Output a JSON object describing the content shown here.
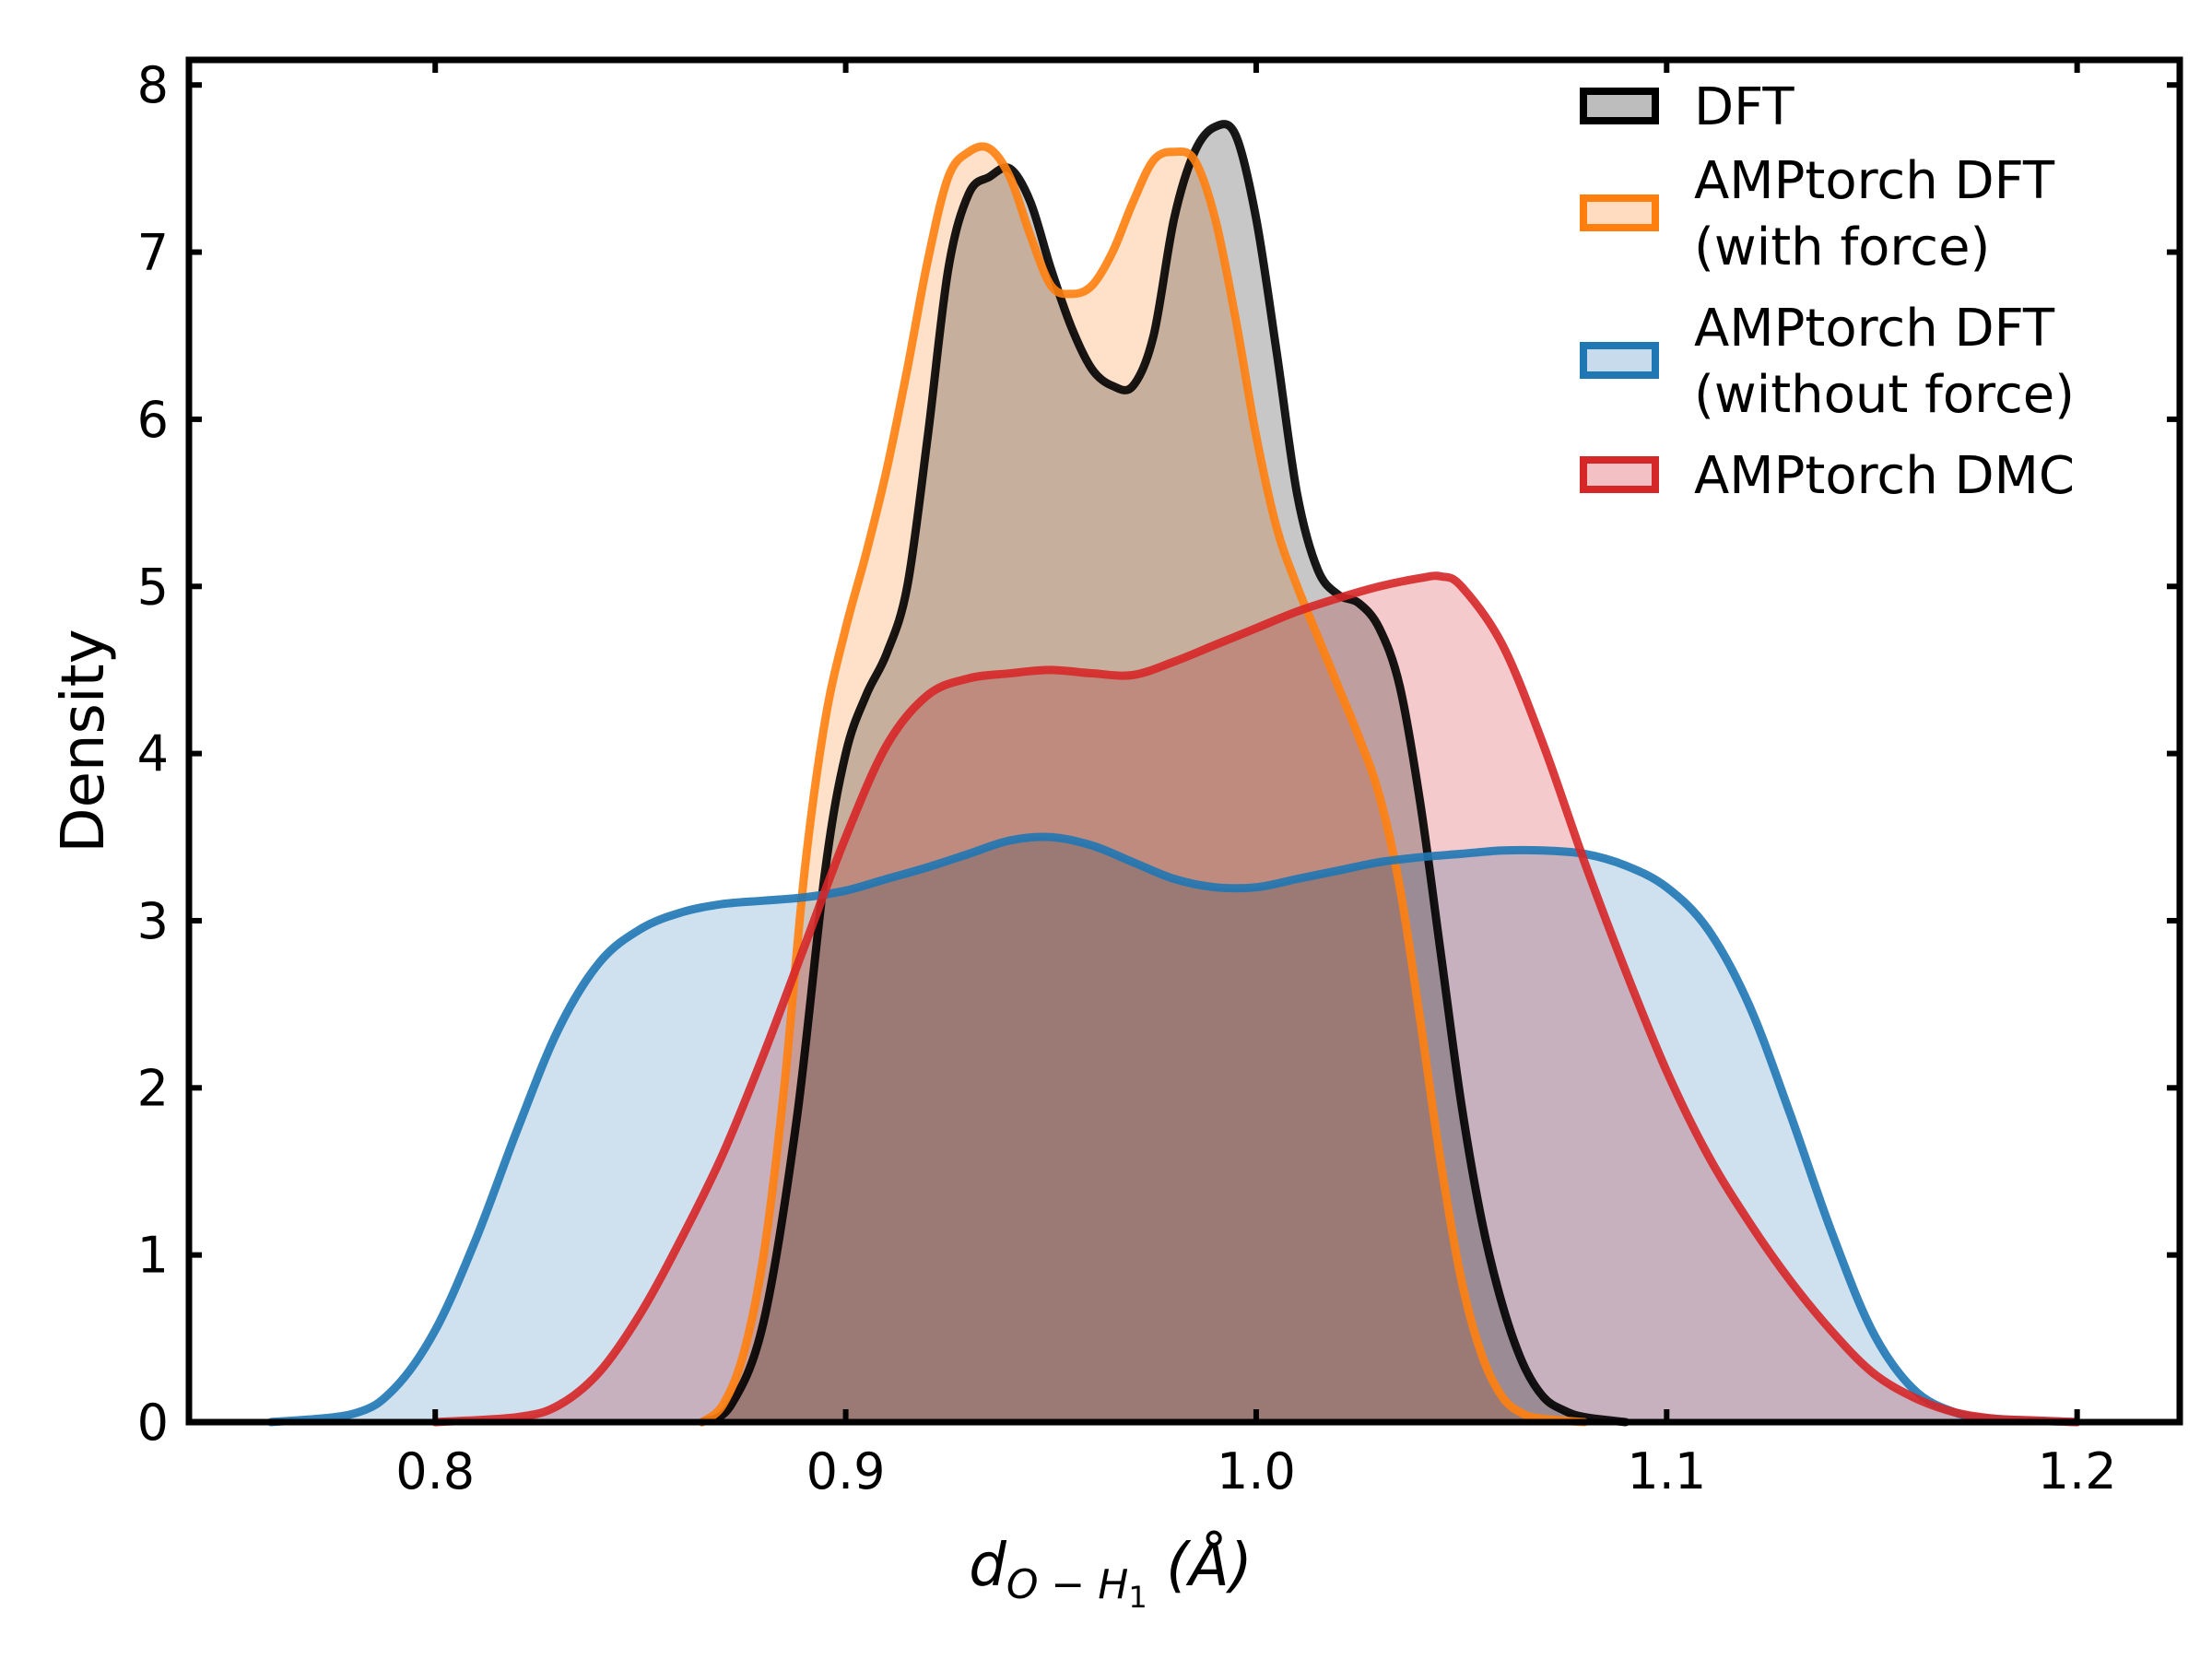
{
  "chart_data": {
    "type": "area",
    "title": "",
    "xlabel_main": "d",
    "xlabel_sub": "O − H",
    "xlabel_subsub": "1",
    "xlabel_unit": " (Å)",
    "ylabel": "Density",
    "xlim": [
      0.74,
      1.225
    ],
    "ylim": [
      0,
      8.15
    ],
    "x_ticks": [
      0.8,
      0.9,
      1.0,
      1.1,
      1.2
    ],
    "x_tick_labels": [
      "0.8",
      "0.9",
      "1.0",
      "1.1",
      "1.2"
    ],
    "y_ticks": [
      0,
      1,
      2,
      3,
      4,
      5,
      6,
      7,
      8
    ],
    "y_tick_labels": [
      "0",
      "1",
      "2",
      "3",
      "4",
      "5",
      "6",
      "7",
      "8"
    ],
    "grid": false,
    "legend_position": "top-right",
    "series": [
      {
        "name": "DFT",
        "color": "#000000",
        "fill": "#bdbdbd",
        "x": [
          0.865,
          0.872,
          0.88,
          0.888,
          0.895,
          0.9,
          0.905,
          0.91,
          0.915,
          0.92,
          0.925,
          0.93,
          0.935,
          0.94,
          0.945,
          0.95,
          0.955,
          0.96,
          0.965,
          0.97,
          0.975,
          0.98,
          0.985,
          0.99,
          0.995,
          1.0,
          1.005,
          1.01,
          1.015,
          1.02,
          1.025,
          1.03,
          1.035,
          1.04,
          1.045,
          1.05,
          1.055,
          1.06,
          1.065,
          1.07,
          1.075,
          1.08,
          1.09
        ],
        "y": [
          0.0,
          0.1,
          0.6,
          1.8,
          3.3,
          4.0,
          4.35,
          4.6,
          5.0,
          5.9,
          6.9,
          7.35,
          7.45,
          7.5,
          7.3,
          6.9,
          6.55,
          6.3,
          6.2,
          6.2,
          6.5,
          7.2,
          7.6,
          7.75,
          7.7,
          7.2,
          6.4,
          5.55,
          5.1,
          4.95,
          4.9,
          4.75,
          4.4,
          3.7,
          2.8,
          1.9,
          1.2,
          0.7,
          0.35,
          0.15,
          0.07,
          0.03,
          0.0
        ]
      },
      {
        "name": "AMPtorch DFT\n(with force)",
        "color": "#ff7f0e",
        "fill": "#ffdcc0",
        "x": [
          0.865,
          0.87,
          0.875,
          0.88,
          0.885,
          0.89,
          0.895,
          0.9,
          0.905,
          0.91,
          0.915,
          0.92,
          0.925,
          0.93,
          0.935,
          0.94,
          0.945,
          0.95,
          0.955,
          0.96,
          0.965,
          0.97,
          0.975,
          0.98,
          0.985,
          0.99,
          0.995,
          1.0,
          1.005,
          1.01,
          1.015,
          1.02,
          1.025,
          1.03,
          1.035,
          1.04,
          1.045,
          1.05,
          1.055,
          1.06,
          1.065,
          1.07,
          1.08
        ],
        "y": [
          0.0,
          0.1,
          0.4,
          1.0,
          2.0,
          3.3,
          4.2,
          4.75,
          5.2,
          5.7,
          6.3,
          6.95,
          7.45,
          7.6,
          7.62,
          7.45,
          7.1,
          6.8,
          6.75,
          6.8,
          7.0,
          7.3,
          7.55,
          7.6,
          7.55,
          7.2,
          6.6,
          5.9,
          5.35,
          5.0,
          4.7,
          4.4,
          4.1,
          3.75,
          3.2,
          2.4,
          1.55,
          0.85,
          0.4,
          0.15,
          0.05,
          0.02,
          0.0
        ]
      },
      {
        "name": "AMPtorch DFT\n(without force)",
        "color": "#1f77b4",
        "fill": "#c7dbec",
        "x": [
          0.76,
          0.78,
          0.79,
          0.8,
          0.81,
          0.82,
          0.83,
          0.84,
          0.85,
          0.86,
          0.87,
          0.88,
          0.89,
          0.9,
          0.91,
          0.92,
          0.93,
          0.94,
          0.95,
          0.96,
          0.97,
          0.98,
          0.99,
          1.0,
          1.01,
          1.02,
          1.03,
          1.04,
          1.05,
          1.06,
          1.07,
          1.08,
          1.09,
          1.1,
          1.11,
          1.12,
          1.13,
          1.14,
          1.15,
          1.16,
          1.17,
          1.18,
          1.2
        ],
        "y": [
          0.0,
          0.05,
          0.2,
          0.55,
          1.1,
          1.75,
          2.35,
          2.75,
          2.95,
          3.05,
          3.1,
          3.12,
          3.14,
          3.18,
          3.25,
          3.32,
          3.4,
          3.48,
          3.5,
          3.45,
          3.35,
          3.25,
          3.2,
          3.2,
          3.25,
          3.3,
          3.35,
          3.38,
          3.4,
          3.42,
          3.42,
          3.4,
          3.33,
          3.2,
          2.95,
          2.5,
          1.85,
          1.15,
          0.55,
          0.2,
          0.06,
          0.02,
          0.0
        ]
      },
      {
        "name": "AMPtorch DMC",
        "color": "#d62728",
        "fill": "#f3c1c3",
        "x": [
          0.8,
          0.82,
          0.83,
          0.84,
          0.85,
          0.86,
          0.87,
          0.88,
          0.89,
          0.9,
          0.91,
          0.92,
          0.93,
          0.94,
          0.95,
          0.96,
          0.97,
          0.98,
          0.99,
          1.0,
          1.01,
          1.02,
          1.03,
          1.04,
          1.045,
          1.05,
          1.06,
          1.07,
          1.08,
          1.09,
          1.1,
          1.11,
          1.12,
          1.13,
          1.14,
          1.15,
          1.16,
          1.17,
          1.18,
          1.19,
          1.2
        ],
        "y": [
          0.0,
          0.03,
          0.1,
          0.3,
          0.65,
          1.1,
          1.6,
          2.2,
          2.85,
          3.5,
          4.05,
          4.35,
          4.45,
          4.48,
          4.5,
          4.48,
          4.47,
          4.55,
          4.65,
          4.75,
          4.85,
          4.93,
          5.0,
          5.05,
          5.06,
          5.0,
          4.65,
          4.05,
          3.35,
          2.7,
          2.1,
          1.6,
          1.2,
          0.85,
          0.55,
          0.3,
          0.15,
          0.06,
          0.02,
          0.01,
          0.0
        ]
      }
    ]
  }
}
